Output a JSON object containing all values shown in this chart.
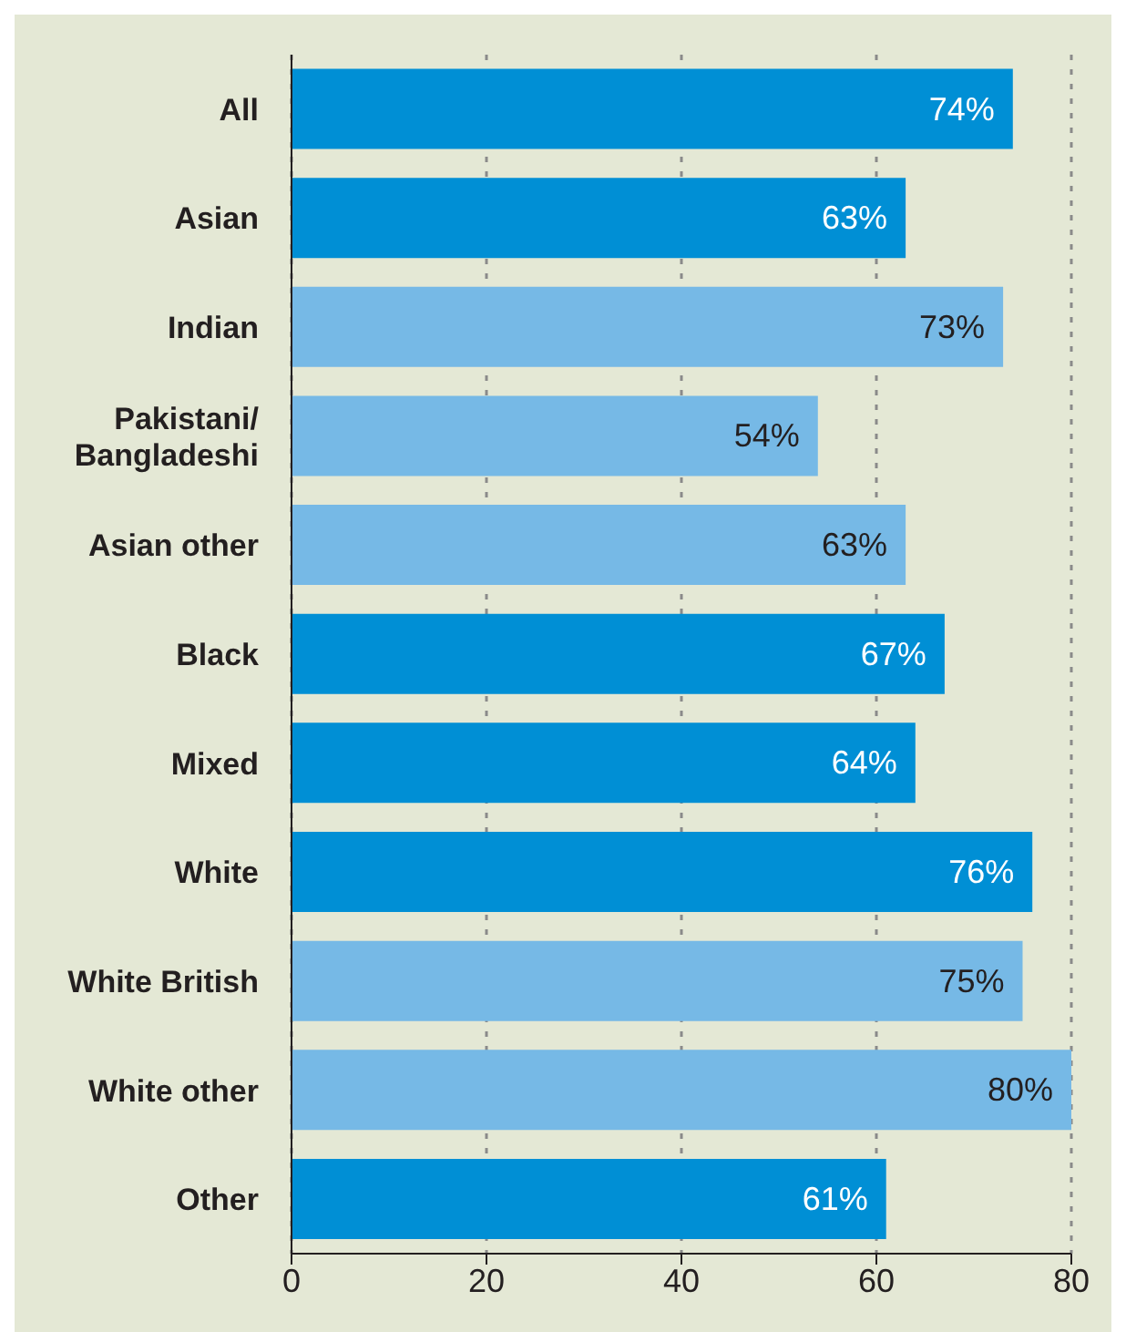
{
  "chart_data": {
    "type": "bar",
    "orientation": "horizontal",
    "categories": [
      "All",
      "Asian",
      "Indian",
      "Pakistani/Bangladeshi",
      "Asian other",
      "Black",
      "Mixed",
      "White",
      "White British",
      "White other",
      "Other"
    ],
    "values": [
      74,
      63,
      73,
      54,
      63,
      67,
      64,
      76,
      75,
      80,
      61
    ],
    "colors": [
      "#008fd5",
      "#008fd5",
      "#76b9e6",
      "#76b9e6",
      "#76b9e6",
      "#008fd5",
      "#008fd5",
      "#008fd5",
      "#76b9e6",
      "#76b9e6",
      "#008fd5"
    ],
    "value_labels": [
      "74%",
      "63%",
      "73%",
      "54%",
      "63%",
      "67%",
      "64%",
      "76%",
      "75%",
      "80%",
      "61%"
    ],
    "xlim": [
      0,
      80
    ],
    "xticks": [
      0,
      20,
      40,
      60,
      80
    ],
    "grid": "x"
  }
}
